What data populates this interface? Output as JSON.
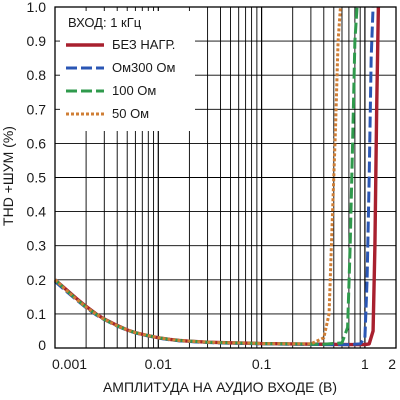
{
  "chart_data": {
    "type": "line",
    "xlabel": "АМПЛИТУДА НА АУДИО ВХОДЕ (В)",
    "ylabel": "THD +ШУМ (%)",
    "xscale": "log",
    "xlim": [
      0.001,
      2
    ],
    "ylim": [
      0,
      1
    ],
    "grid": true,
    "legend_title": "ВХОД: 1 кГц",
    "legend_placement": "top-left",
    "x_tick_labels": [
      "0.001",
      "0.01",
      "0.1",
      "1",
      "2"
    ],
    "x_ticks": [
      0.001,
      0.01,
      0.1,
      1,
      2
    ],
    "y_tick_labels": [
      "0",
      "0.1",
      "0.2",
      "0.3",
      "0.4",
      "0.5",
      "0.6",
      "0.7",
      "0.8",
      "0.9",
      "1.0"
    ],
    "y_ticks": [
      0,
      0.1,
      0.2,
      0.3,
      0.4,
      0.5,
      0.6,
      0.7,
      0.8,
      0.9,
      1.0
    ],
    "series": [
      {
        "name": "БЕЗ НАГР.",
        "color": "#a8202e",
        "style": "solid",
        "x": [
          0.001,
          0.0013,
          0.0016,
          0.002,
          0.0025,
          0.003,
          0.004,
          0.005,
          0.006,
          0.008,
          0.01,
          0.013,
          0.016,
          0.02,
          0.03,
          0.05,
          0.08,
          0.1,
          0.2,
          0.4,
          0.7,
          1.0,
          1.1,
          1.2,
          1.25,
          1.3,
          1.35
        ],
        "y": [
          0.2,
          0.17,
          0.146,
          0.122,
          0.1,
          0.085,
          0.066,
          0.053,
          0.045,
          0.036,
          0.03,
          0.025,
          0.022,
          0.02,
          0.017,
          0.015,
          0.014,
          0.013,
          0.012,
          0.011,
          0.01,
          0.01,
          0.012,
          0.05,
          0.3,
          0.7,
          1.0
        ]
      },
      {
        "name": "Ом300 Ом",
        "color": "#2a56b4",
        "style": "dashed",
        "x": [
          0.001,
          0.0013,
          0.0016,
          0.002,
          0.0025,
          0.003,
          0.004,
          0.005,
          0.006,
          0.008,
          0.01,
          0.013,
          0.016,
          0.02,
          0.03,
          0.05,
          0.08,
          0.1,
          0.2,
          0.4,
          0.7,
          0.9,
          1.0,
          1.05,
          1.1,
          1.15,
          1.2
        ],
        "y": [
          0.195,
          0.165,
          0.142,
          0.118,
          0.097,
          0.083,
          0.064,
          0.052,
          0.044,
          0.035,
          0.029,
          0.024,
          0.021,
          0.019,
          0.016,
          0.014,
          0.013,
          0.012,
          0.011,
          0.01,
          0.01,
          0.012,
          0.03,
          0.2,
          0.5,
          0.85,
          1.0
        ]
      },
      {
        "name": "100 Ом",
        "color": "#2f9a4c",
        "style": "dashed",
        "x": [
          0.001,
          0.0013,
          0.0016,
          0.002,
          0.0025,
          0.003,
          0.004,
          0.005,
          0.006,
          0.008,
          0.01,
          0.013,
          0.016,
          0.02,
          0.03,
          0.05,
          0.08,
          0.1,
          0.2,
          0.4,
          0.6,
          0.68,
          0.72,
          0.76,
          0.8,
          0.84
        ],
        "y": [
          0.2,
          0.168,
          0.144,
          0.12,
          0.099,
          0.084,
          0.065,
          0.053,
          0.045,
          0.036,
          0.03,
          0.025,
          0.022,
          0.02,
          0.017,
          0.015,
          0.014,
          0.013,
          0.012,
          0.011,
          0.015,
          0.06,
          0.3,
          0.6,
          0.9,
          1.0
        ]
      },
      {
        "name": "50 Ом",
        "color": "#cf7e35",
        "style": "dotted",
        "x": [
          0.001,
          0.0013,
          0.0016,
          0.002,
          0.0025,
          0.003,
          0.004,
          0.005,
          0.006,
          0.008,
          0.01,
          0.013,
          0.016,
          0.02,
          0.03,
          0.05,
          0.08,
          0.1,
          0.2,
          0.3,
          0.4,
          0.45,
          0.48,
          0.52,
          0.55,
          0.58
        ],
        "y": [
          0.2,
          0.168,
          0.144,
          0.12,
          0.099,
          0.084,
          0.065,
          0.053,
          0.045,
          0.036,
          0.03,
          0.025,
          0.022,
          0.02,
          0.017,
          0.015,
          0.014,
          0.013,
          0.012,
          0.012,
          0.03,
          0.1,
          0.35,
          0.65,
          0.9,
          1.0
        ]
      }
    ]
  }
}
